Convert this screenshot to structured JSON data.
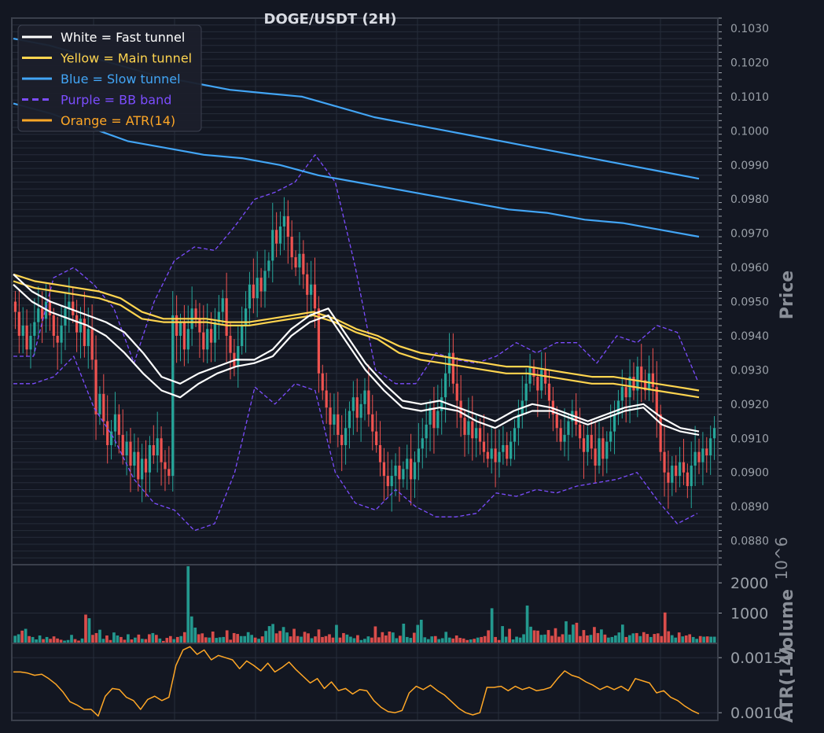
{
  "title": "DOGE/USDT (2H)",
  "colors": {
    "background": "#131722",
    "panel": "#131722",
    "frame": "#3a3f4b",
    "grid": "#262c3a",
    "candle_up": "#26a69a",
    "candle_down": "#ef5350",
    "fast_tunnel": "#ffffff",
    "main_tunnel": "#ffd54f",
    "slow_tunnel": "#42a5f5",
    "bb_band": "#7c4dff",
    "atr": "#ffa726",
    "axis_text": "#9aa0a8",
    "title_text": "#d9dce3"
  },
  "legend": [
    {
      "label": "White = Fast tunnel",
      "color": "#ffffff",
      "dash": false
    },
    {
      "label": "Yellow = Main tunnel",
      "color": "#ffd54f",
      "dash": false
    },
    {
      "label": "Blue = Slow tunnel",
      "color": "#42a5f5",
      "dash": false
    },
    {
      "label": "Purple = BB band",
      "color": "#7c4dff",
      "dash": true
    },
    {
      "label": "Orange = ATR(14)",
      "color": "#ffa726",
      "dash": false
    }
  ],
  "chart_data": [
    {
      "type": "candlestick",
      "panel": "price",
      "ylabel": "Price",
      "ylim": [
        0.0873,
        0.1033
      ],
      "yticks": [
        "0.0880",
        "0.0890",
        "0.0900",
        "0.0910",
        "0.0920",
        "0.0930",
        "0.0940",
        "0.0950",
        "0.0960",
        "0.0970",
        "0.0980",
        "0.0990",
        "0.1000",
        "0.1010",
        "0.1020",
        "0.1030"
      ],
      "grid": true,
      "legend_position": "top-left",
      "closes": [
        0.0947,
        0.094,
        0.0943,
        0.0936,
        0.094,
        0.0944,
        0.0948,
        0.0945,
        0.095,
        0.0946,
        0.094,
        0.0938,
        0.0943,
        0.0948,
        0.095,
        0.0946,
        0.0941,
        0.0945,
        0.0937,
        0.0942,
        0.0933,
        0.0917,
        0.0923,
        0.0915,
        0.0908,
        0.0912,
        0.0917,
        0.0911,
        0.0905,
        0.0909,
        0.0902,
        0.0906,
        0.0898,
        0.0904,
        0.09,
        0.0908,
        0.0905,
        0.091,
        0.0903,
        0.0901,
        0.0899,
        0.0946,
        0.094,
        0.0944,
        0.0936,
        0.0942,
        0.0948,
        0.0945,
        0.0941,
        0.0936,
        0.0942,
        0.0938,
        0.0944,
        0.0947,
        0.0951,
        0.094,
        0.0935,
        0.0931,
        0.0937,
        0.0943,
        0.0948,
        0.0955,
        0.0951,
        0.0957,
        0.0953,
        0.0959,
        0.0962,
        0.0971,
        0.0967,
        0.0972,
        0.0975,
        0.0969,
        0.0963,
        0.096,
        0.0964,
        0.0958,
        0.0952,
        0.0955,
        0.0948,
        0.0929,
        0.0924,
        0.0919,
        0.0914,
        0.0917,
        0.0911,
        0.0908,
        0.0913,
        0.0918,
        0.0922,
        0.0916,
        0.092,
        0.0924,
        0.0917,
        0.0912,
        0.0908,
        0.0903,
        0.0899,
        0.0896,
        0.0899,
        0.0902,
        0.0898,
        0.0901,
        0.0904,
        0.0898,
        0.0903,
        0.0907,
        0.091,
        0.0914,
        0.0919,
        0.0913,
        0.0918,
        0.0922,
        0.0929,
        0.0935,
        0.0926,
        0.0921,
        0.0916,
        0.0911,
        0.0915,
        0.091,
        0.0913,
        0.0909,
        0.0906,
        0.0904,
        0.0907,
        0.0903,
        0.0906,
        0.0908,
        0.0904,
        0.0909,
        0.0913,
        0.0917,
        0.0921,
        0.0926,
        0.0931,
        0.0928,
        0.0924,
        0.093,
        0.0926,
        0.0921,
        0.0917,
        0.0913,
        0.0909,
        0.0911,
        0.0915,
        0.0918,
        0.0914,
        0.091,
        0.0906,
        0.0911,
        0.0907,
        0.0902,
        0.091,
        0.0904,
        0.0909,
        0.0912,
        0.0917,
        0.0921,
        0.0925,
        0.0922,
        0.0928,
        0.0924,
        0.0931,
        0.0927,
        0.0924,
        0.0929,
        0.0925,
        0.0917,
        0.0906,
        0.09,
        0.0897,
        0.0902,
        0.0899,
        0.0903,
        0.09,
        0.0896,
        0.0902,
        0.0906,
        0.0903,
        0.0907,
        0.0905,
        0.091,
        0.0913
      ],
      "lines": {
        "fast_upper": [
          0.0958,
          0.0953,
          0.095,
          0.0948,
          0.0946,
          0.0944,
          0.0941,
          0.0935,
          0.0928,
          0.0926,
          0.0929,
          0.0931,
          0.0933,
          0.0933,
          0.0936,
          0.0942,
          0.0946,
          0.0948,
          0.094,
          0.0932,
          0.0926,
          0.0921,
          0.092,
          0.0921,
          0.0919,
          0.0917,
          0.0915,
          0.0918,
          0.092,
          0.0919,
          0.0917,
          0.0915,
          0.0917,
          0.0919,
          0.092,
          0.0916,
          0.0913,
          0.0912
        ],
        "fast_lower": [
          0.0955,
          0.095,
          0.0947,
          0.0945,
          0.0943,
          0.094,
          0.0935,
          0.0929,
          0.0924,
          0.0922,
          0.0926,
          0.0929,
          0.0931,
          0.0932,
          0.0934,
          0.094,
          0.0944,
          0.0946,
          0.0938,
          0.093,
          0.0924,
          0.0919,
          0.0918,
          0.0919,
          0.0918,
          0.0915,
          0.0913,
          0.0916,
          0.0918,
          0.0918,
          0.0916,
          0.0914,
          0.0916,
          0.0918,
          0.0919,
          0.0914,
          0.0912,
          0.0911
        ],
        "main_upper": [
          0.0958,
          0.0956,
          0.0955,
          0.0954,
          0.0953,
          0.0951,
          0.0947,
          0.0945,
          0.0945,
          0.0945,
          0.0944,
          0.0944,
          0.0945,
          0.0946,
          0.0947,
          0.0945,
          0.0942,
          0.094,
          0.0937,
          0.0935,
          0.0934,
          0.0933,
          0.0932,
          0.0931,
          0.0931,
          0.093,
          0.0929,
          0.0928,
          0.0928,
          0.0927,
          0.0926,
          0.0925,
          0.0924
        ],
        "main_lower": [
          0.0956,
          0.0954,
          0.0953,
          0.0952,
          0.0951,
          0.0949,
          0.0945,
          0.0944,
          0.0944,
          0.0944,
          0.0943,
          0.0943,
          0.0944,
          0.0945,
          0.0946,
          0.0944,
          0.0941,
          0.0939,
          0.0935,
          0.0933,
          0.0932,
          0.0931,
          0.093,
          0.0929,
          0.0929,
          0.0928,
          0.0927,
          0.0926,
          0.0926,
          0.0925,
          0.0924,
          0.0923,
          0.0922
        ],
        "slow_upper": [
          0.1027,
          0.1025,
          0.1022,
          0.1019,
          0.1016,
          0.1014,
          0.1012,
          0.1011,
          0.101,
          0.1007,
          0.1004,
          0.1002,
          0.1,
          0.0998,
          0.0996,
          0.0994,
          0.0992,
          0.099,
          0.0988,
          0.0986
        ],
        "slow_lower": [
          0.1008,
          0.1005,
          0.1001,
          0.0997,
          0.0995,
          0.0993,
          0.0992,
          0.099,
          0.0987,
          0.0985,
          0.0983,
          0.0981,
          0.0979,
          0.0977,
          0.0976,
          0.0974,
          0.0973,
          0.0971,
          0.0969
        ],
        "bb_upper": [
          0.0934,
          0.0934,
          0.0957,
          0.096,
          0.0955,
          0.0948,
          0.0932,
          0.095,
          0.0962,
          0.0966,
          0.0965,
          0.0972,
          0.098,
          0.0982,
          0.0985,
          0.0993,
          0.0985,
          0.096,
          0.093,
          0.0926,
          0.0926,
          0.0935,
          0.0933,
          0.0932,
          0.0934,
          0.0938,
          0.0935,
          0.0938,
          0.0938,
          0.0932,
          0.094,
          0.0938,
          0.0943,
          0.0941,
          0.0927
        ],
        "bb_lower": [
          0.0926,
          0.0926,
          0.0928,
          0.0934,
          0.0919,
          0.091,
          0.0898,
          0.0891,
          0.0889,
          0.0883,
          0.0885,
          0.09,
          0.0925,
          0.092,
          0.0926,
          0.0924,
          0.09,
          0.0891,
          0.0889,
          0.0895,
          0.089,
          0.0887,
          0.0887,
          0.0888,
          0.0894,
          0.0893,
          0.0895,
          0.0894,
          0.0896,
          0.0897,
          0.0898,
          0.09,
          0.0892,
          0.0885,
          0.0888
        ]
      }
    },
    {
      "type": "bar",
      "panel": "volume",
      "ylabel": "Volume",
      "scale_note": "10^6",
      "ylim": [
        0,
        2600
      ],
      "yticks": [
        "1000",
        "2000"
      ],
      "values": [
        250,
        300,
        420,
        480,
        240,
        210,
        130,
        260,
        140,
        210,
        150,
        230,
        160,
        120,
        90,
        110,
        280,
        140,
        90,
        160,
        950,
        830,
        280,
        340,
        450,
        150,
        260,
        110,
        360,
        260,
        210,
        120,
        300,
        130,
        190,
        290,
        150,
        140,
        300,
        340,
        280,
        160,
        80,
        180,
        240,
        140,
        210,
        240,
        370,
        2550,
        890,
        520,
        300,
        330,
        200,
        190,
        390,
        180,
        200,
        210,
        430,
        120,
        340,
        310,
        240,
        240,
        370,
        280,
        190,
        150,
        230,
        410,
        570,
        640,
        330,
        410,
        540,
        360,
        230,
        480,
        240,
        220,
        380,
        330,
        170,
        230,
        460,
        210,
        240,
        300,
        190,
        610,
        190,
        340,
        290,
        220,
        170,
        270,
        110,
        150,
        230,
        190,
        560,
        200,
        370,
        260,
        390,
        360,
        170,
        250,
        650,
        210,
        180,
        350,
        610,
        780,
        200,
        140,
        230,
        240,
        140,
        170,
        380,
        190,
        160,
        260,
        180,
        160,
        110,
        130,
        150,
        190,
        210,
        240,
        430,
        1160,
        210,
        110,
        570,
        220,
        480,
        130,
        220,
        190,
        300,
        1250,
        550,
        430,
        420,
        280,
        290,
        440,
        250,
        500,
        220,
        300,
        730,
        290,
        620,
        680,
        240,
        440,
        260,
        280,
        540,
        340,
        460,
        290,
        190,
        210,
        260,
        360,
        620,
        210,
        270,
        330,
        340,
        240,
        370,
        310,
        210,
        310,
        330,
        240,
        1020,
        400,
        270,
        190,
        360,
        230,
        260,
        300,
        210,
        150,
        240,
        220,
        230,
        220,
        220
      ]
    },
    {
      "type": "line",
      "panel": "atr",
      "ylabel": "ATR(14)",
      "ylim": [
        0.00093,
        0.00163
      ],
      "yticks": [
        "0.0010",
        "0.0015"
      ],
      "values": [
        0.00137,
        0.00137,
        0.00136,
        0.00134,
        0.00135,
        0.00131,
        0.00126,
        0.00119,
        0.0011,
        0.00107,
        0.00103,
        0.00103,
        0.00097,
        0.00115,
        0.00122,
        0.00121,
        0.00114,
        0.00111,
        0.00103,
        0.00112,
        0.00115,
        0.00111,
        0.00114,
        0.00143,
        0.00157,
        0.0016,
        0.00153,
        0.00157,
        0.00148,
        0.00152,
        0.0015,
        0.00148,
        0.0014,
        0.00147,
        0.00143,
        0.00138,
        0.00145,
        0.00137,
        0.00141,
        0.00146,
        0.00139,
        0.00133,
        0.00127,
        0.00131,
        0.00122,
        0.00128,
        0.0012,
        0.00122,
        0.00117,
        0.00121,
        0.0012,
        0.00111,
        0.00105,
        0.00101,
        0.001,
        0.00102,
        0.00118,
        0.00124,
        0.00121,
        0.00125,
        0.0012,
        0.00116,
        0.0011,
        0.00104,
        0.001,
        0.00098,
        0.001,
        0.00123,
        0.00123,
        0.00124,
        0.0012,
        0.00124,
        0.00121,
        0.00123,
        0.0012,
        0.00121,
        0.00123,
        0.00131,
        0.00138,
        0.00134,
        0.00132,
        0.00128,
        0.00125,
        0.00121,
        0.00124,
        0.00121,
        0.00124,
        0.0012,
        0.00131,
        0.00129,
        0.00127,
        0.00118,
        0.0012,
        0.00114,
        0.00111,
        0.00106,
        0.00102,
        0.00099
      ]
    }
  ]
}
